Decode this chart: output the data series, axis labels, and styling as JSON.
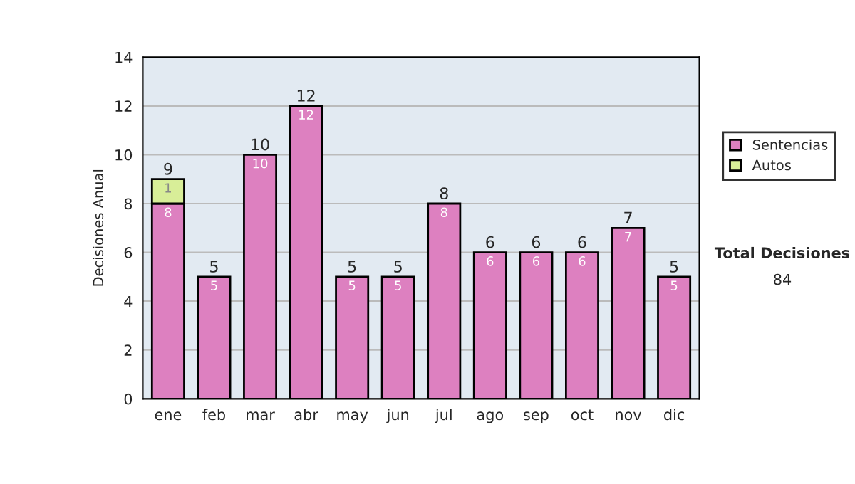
{
  "chart_data": {
    "type": "bar",
    "stacked": true,
    "ylabel": "Decisiones Anual",
    "categories": [
      "ene",
      "feb",
      "mar",
      "abr",
      "may",
      "jun",
      "jul",
      "ago",
      "sep",
      "oct",
      "nov",
      "dic"
    ],
    "series": [
      {
        "name": "Sentencias",
        "color": "#dd80c0",
        "values": [
          8,
          5,
          10,
          12,
          5,
          5,
          8,
          6,
          6,
          6,
          7,
          5
        ],
        "value_labels": [
          "8",
          "5",
          "10",
          "12",
          "5",
          "5",
          "8",
          "6",
          "6",
          "6",
          "7",
          "5"
        ]
      },
      {
        "name": "Autos",
        "color": "#d8ee98",
        "values": [
          1,
          0,
          0,
          0,
          0,
          0,
          0,
          0,
          0,
          0,
          0,
          0
        ],
        "value_labels": [
          "1",
          null,
          null,
          null,
          null,
          null,
          null,
          null,
          null,
          null,
          null,
          null
        ]
      }
    ],
    "totals": [
      "9",
      "5",
      "10",
      "12",
      "5",
      "5",
      "8",
      "6",
      "6",
      "6",
      "7",
      "5"
    ],
    "ylim": [
      0,
      14
    ],
    "yticks": [
      0,
      2,
      4,
      6,
      8,
      10,
      12,
      14
    ],
    "grid": "y",
    "legend": "right",
    "annotations": [
      "Total Decisiones",
      "84"
    ]
  }
}
